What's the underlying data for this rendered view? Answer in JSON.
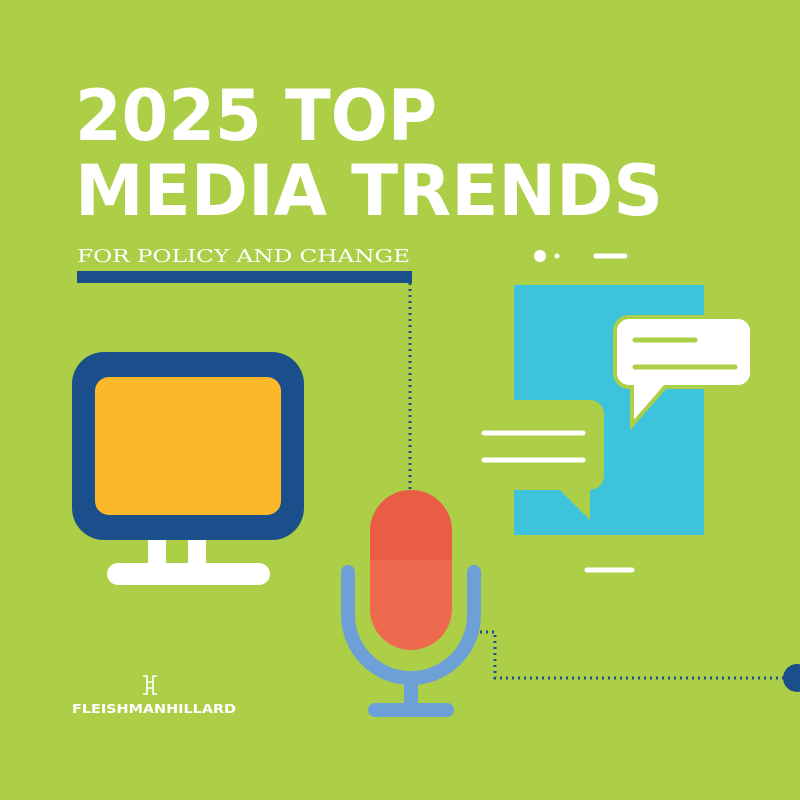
{
  "header": {
    "title_lines": [
      "2025 TOP",
      "MEDIA TRENDS"
    ],
    "subtitle": "FOR POLICY AND CHANGE"
  },
  "footer": {
    "brand": "FLEISHMANHILLARD"
  }
}
